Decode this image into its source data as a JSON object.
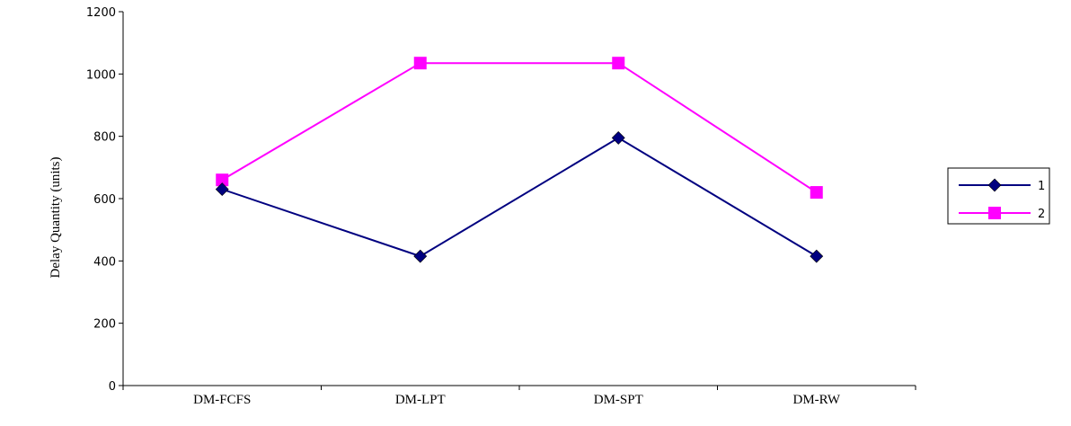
{
  "chart_data": {
    "type": "line",
    "title": "",
    "xlabel": "",
    "ylabel": "Delay Quantity (units)",
    "categories": [
      "DM-FCFS",
      "DM-LPT",
      "DM-SPT",
      "DM-RW"
    ],
    "yticks": [
      0,
      200,
      400,
      600,
      800,
      1000,
      1200
    ],
    "ylim": [
      0,
      1200
    ],
    "grid": false,
    "legend_position": "right",
    "series": [
      {
        "name": "1",
        "values": [
          630,
          415,
          795,
          415
        ],
        "color": "#000080",
        "marker": "diamond"
      },
      {
        "name": "2",
        "values": [
          660,
          1035,
          1035,
          620
        ],
        "color": "#ff00ff",
        "marker": "square"
      }
    ]
  }
}
